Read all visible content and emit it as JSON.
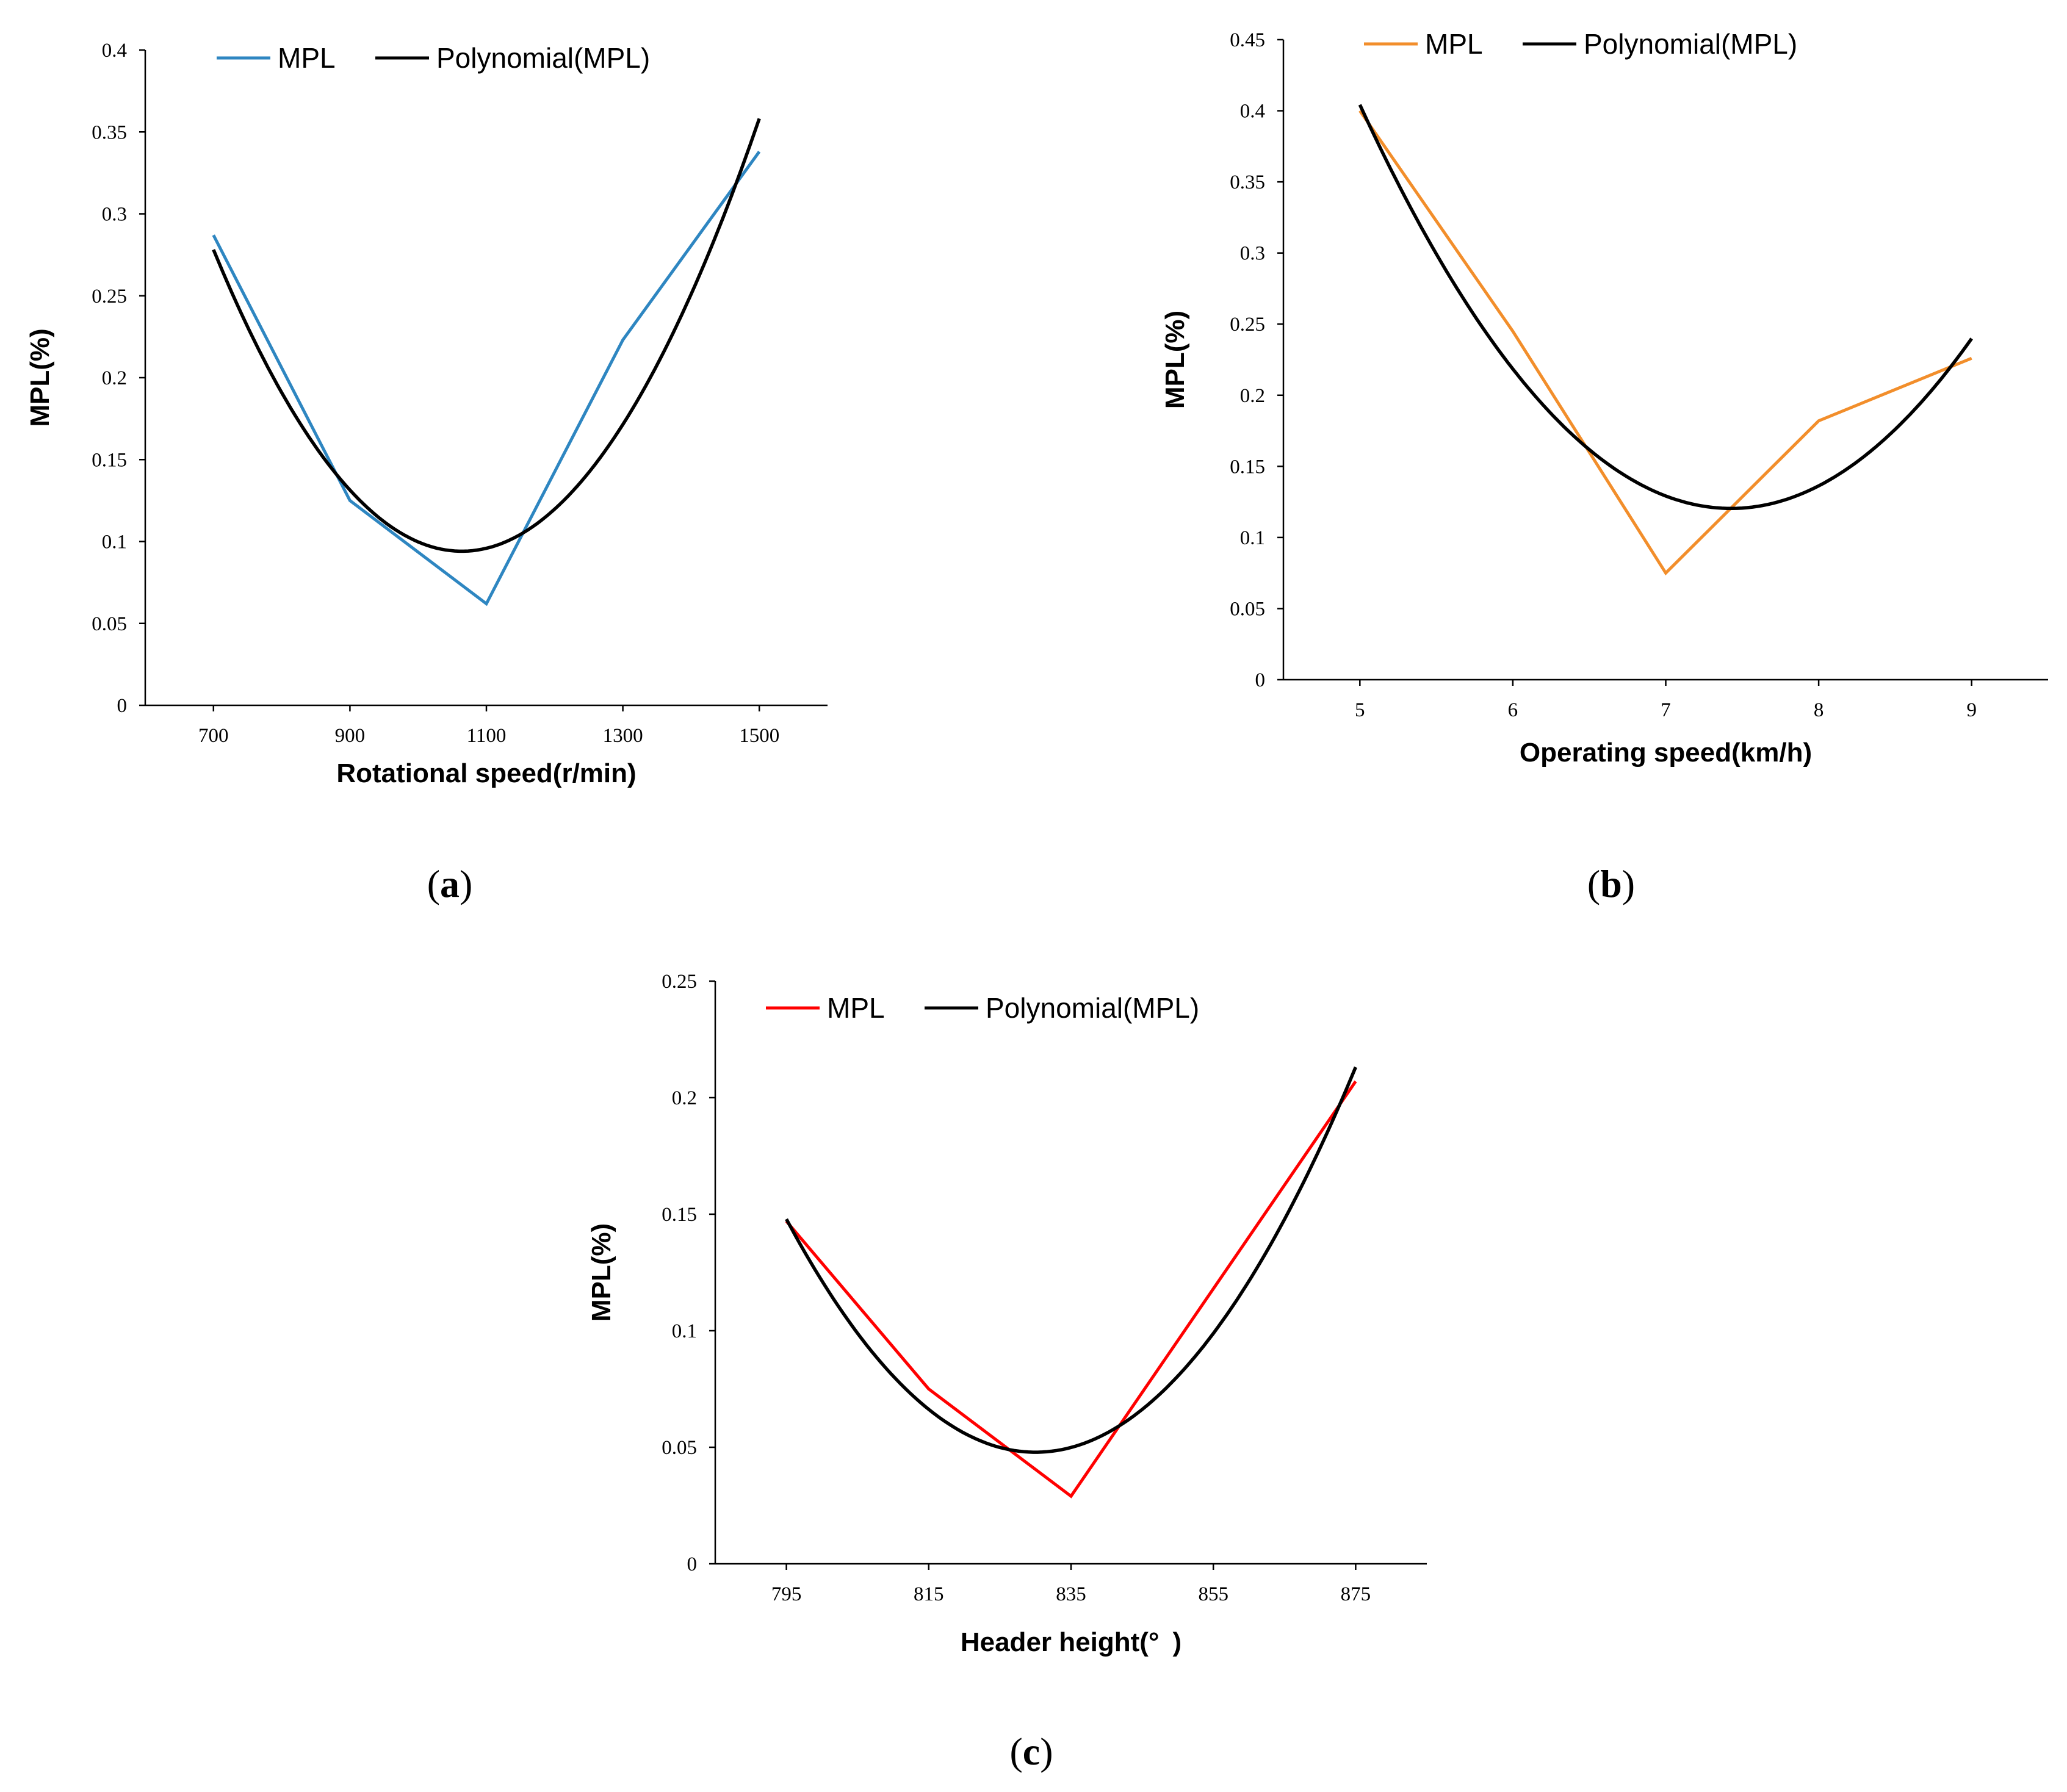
{
  "chart_data": [
    {
      "type": "line",
      "panel": "a",
      "xlabel": "Rotational speed(r/min)",
      "ylabel": "MPL(%)",
      "x": [
        700,
        900,
        1100,
        1300,
        1500
      ],
      "x_tick_labels": [
        "700",
        "900",
        "1100",
        "1300",
        "1500"
      ],
      "xlim": [
        600,
        1600
      ],
      "ylim": [
        0,
        0.4
      ],
      "y_tick_labels": [
        "0",
        "0.05",
        "0.1",
        "0.15",
        "0.2",
        "0.25",
        "0.3",
        "0.35",
        "0.4"
      ],
      "legend_position": "top-center",
      "series": [
        {
          "name": "MPL",
          "values": [
            0.287,
            0.125,
            0.062,
            0.223,
            0.338
          ],
          "color": "#2E86C1"
        },
        {
          "name": "Polynomial(MPL)",
          "fit": "quadratic",
          "color": "#000000"
        }
      ]
    },
    {
      "type": "line",
      "panel": "b",
      "xlabel": "Operating speed(km/h)",
      "ylabel": "MPL(%)",
      "x": [
        5,
        6,
        7,
        8,
        9
      ],
      "x_tick_labels": [
        "5",
        "6",
        "7",
        "8",
        "9"
      ],
      "xlim": [
        4.5,
        9.5
      ],
      "ylim": [
        0,
        0.45
      ],
      "y_tick_labels": [
        "0",
        "0.05",
        "0.1",
        "0.15",
        "0.2",
        "0.25",
        "0.3",
        "0.35",
        "0.4",
        "0.45"
      ],
      "legend_position": "top-center",
      "series": [
        {
          "name": "MPL",
          "values": [
            0.4,
            0.245,
            0.075,
            0.182,
            0.226
          ],
          "color": "#F28E2B"
        },
        {
          "name": "Polynomial(MPL)",
          "fit": "quadratic",
          "color": "#000000"
        }
      ]
    },
    {
      "type": "line",
      "panel": "c",
      "xlabel": "Header height(° )",
      "ylabel": "MPL(%)",
      "x": [
        795,
        815,
        835,
        855,
        875
      ],
      "x_tick_labels": [
        "795",
        "815",
        "835",
        "855",
        "875"
      ],
      "xlim": [
        785,
        885
      ],
      "ylim": [
        0,
        0.25
      ],
      "y_tick_labels": [
        "0",
        "0.05",
        "0.1",
        "0.15",
        "0.2",
        "0.25"
      ],
      "legend_position": "top-center",
      "series": [
        {
          "name": "MPL",
          "values": [
            0.147,
            0.075,
            0.029,
            0.118,
            0.207
          ],
          "color": "#FF0000"
        },
        {
          "name": "Polynomial(MPL)",
          "fit": "quadratic",
          "color": "#000000"
        }
      ]
    }
  ],
  "panel_labels": [
    "a",
    "b",
    "c"
  ]
}
